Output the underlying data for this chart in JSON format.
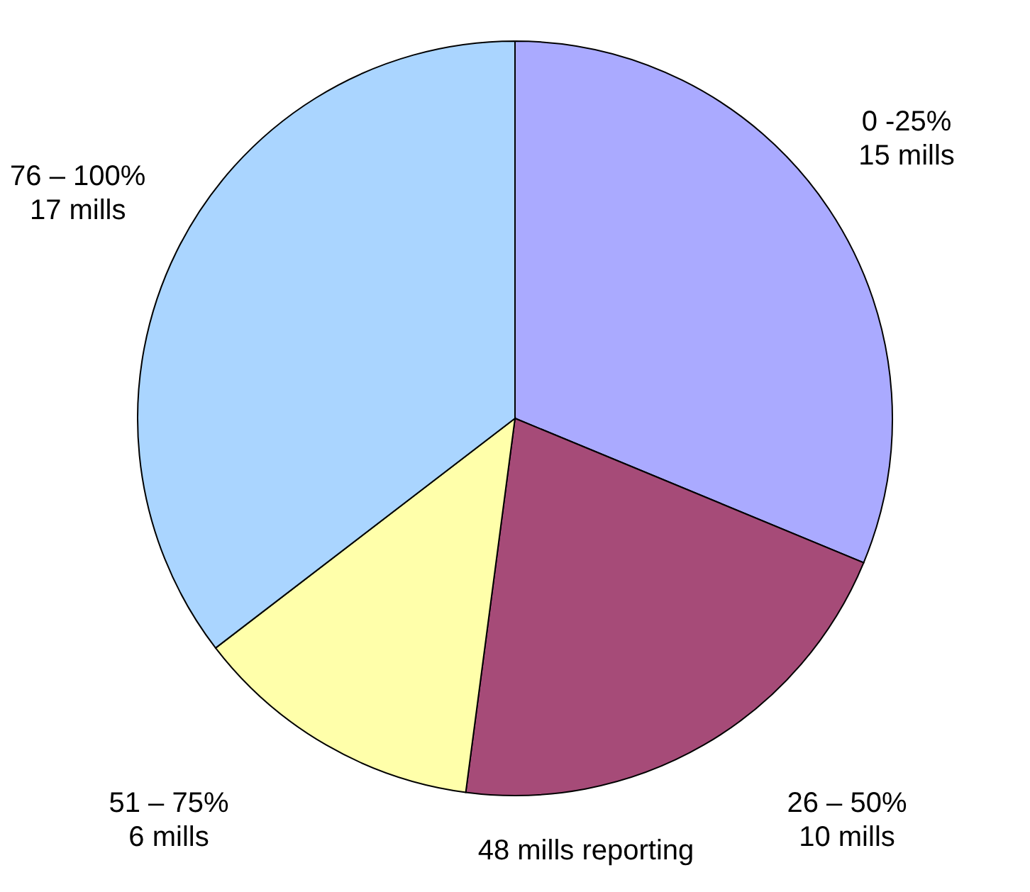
{
  "chart_data": {
    "type": "pie",
    "categories": [
      "0 -25%",
      "26 – 50%",
      "51 – 75%",
      "76 – 100%"
    ],
    "values": [
      15,
      10,
      6,
      17
    ],
    "value_labels": [
      "15 mills",
      "10 mills",
      "6 mills",
      "17 mills"
    ],
    "colors": [
      "#aaaaff",
      "#a64b78",
      "#ffffaa",
      "#aad5ff"
    ],
    "annotations": [
      "48 mills   reporting"
    ],
    "legend": false
  }
}
